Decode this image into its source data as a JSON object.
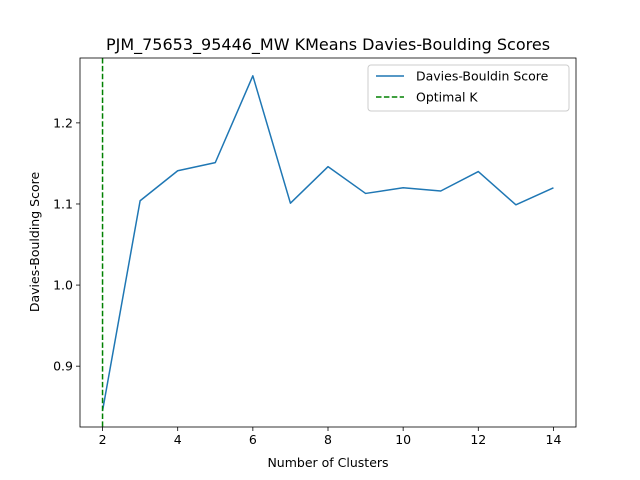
{
  "chart_data": {
    "type": "line",
    "title": "PJM_75653_95446_MW KMeans Davies-Boulding Scores",
    "xlabel": "Number of Clusters",
    "ylabel": "Davies-Boulding Score",
    "xlim": [
      1.4,
      14.6
    ],
    "ylim": [
      0.825,
      1.28
    ],
    "xticks": [
      2,
      4,
      6,
      8,
      10,
      12,
      14
    ],
    "yticks": [
      0.9,
      1.0,
      1.1,
      1.2
    ],
    "xtick_labels": [
      "2",
      "4",
      "6",
      "8",
      "10",
      "12",
      "14"
    ],
    "ytick_labels": [
      "0.9",
      "1.0",
      "1.1",
      "1.2"
    ],
    "grid": false,
    "legend_position": "top-right",
    "series": [
      {
        "name": "Davies-Bouldin Score",
        "color": "#1f77b4",
        "style": "solid",
        "x": [
          2,
          3,
          4,
          5,
          6,
          7,
          8,
          9,
          10,
          11,
          12,
          13,
          14
        ],
        "values": [
          0.845,
          1.104,
          1.141,
          1.151,
          1.258,
          1.101,
          1.146,
          1.113,
          1.12,
          1.116,
          1.14,
          1.099,
          1.12
        ]
      }
    ],
    "vlines": [
      {
        "name": "Optimal K",
        "x": 2,
        "color": "#008000",
        "style": "dashed"
      }
    ]
  }
}
